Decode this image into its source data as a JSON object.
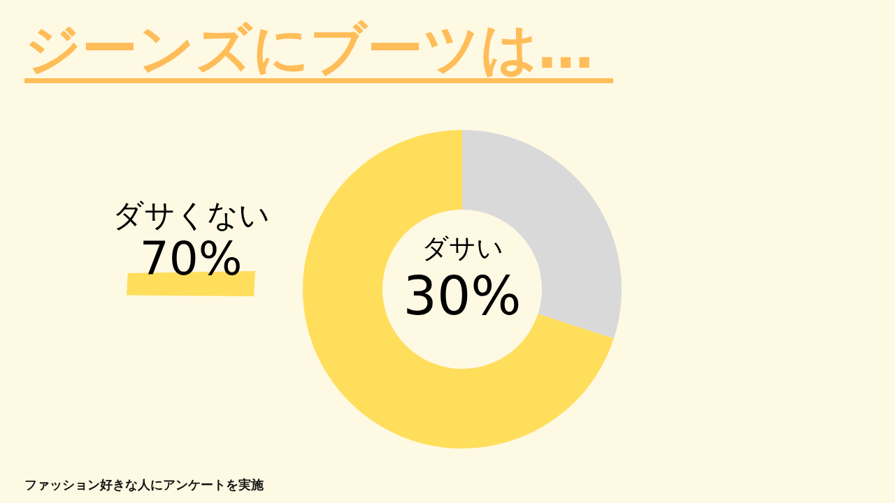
{
  "chart_data": {
    "type": "donut",
    "title": "ジーンズにブーツは…",
    "categories": [
      "ダサい",
      "ダサくない"
    ],
    "values": [
      30,
      70
    ],
    "colors": [
      "#d9d9d9",
      "#ffde5c"
    ],
    "value_labels": [
      "30%",
      "70%"
    ],
    "annotations": [
      "ファッション好きな人にアンケートを実施"
    ]
  }
}
